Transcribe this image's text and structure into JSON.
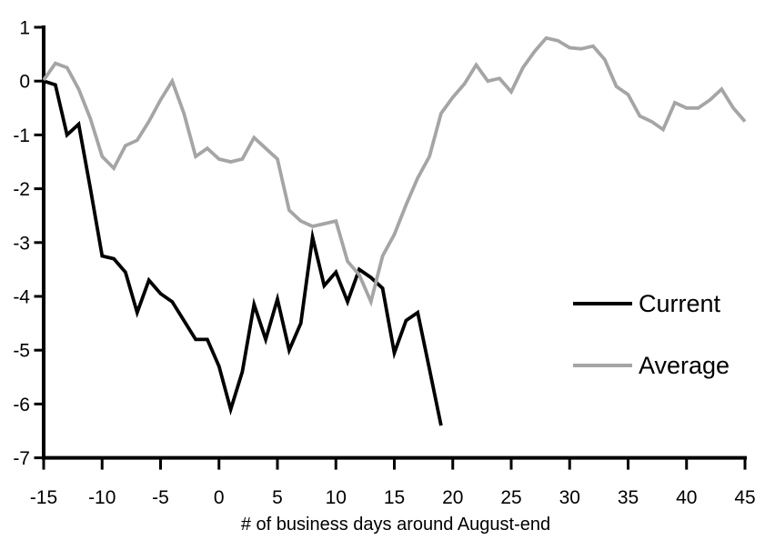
{
  "chart_data": {
    "type": "line",
    "title": "",
    "xlabel": "# of business days around August-end",
    "ylabel": "",
    "xlim": [
      -15,
      45
    ],
    "ylim": [
      -7,
      1
    ],
    "x_ticks": [
      -15,
      -10,
      -5,
      0,
      5,
      10,
      15,
      20,
      25,
      30,
      35,
      40,
      45
    ],
    "y_ticks": [
      1,
      0,
      -1,
      -2,
      -3,
      -4,
      -5,
      -6,
      -7
    ],
    "grid": false,
    "legend_position": "middle-right",
    "axis_color": "#000000",
    "background_color": "#ffffff",
    "series": [
      {
        "name": "Current",
        "color": "#000000",
        "x": [
          -15,
          -14,
          -13,
          -12,
          -11,
          -10,
          -9,
          -8,
          -7,
          -6,
          -5,
          -4,
          -3,
          -2,
          -1,
          0,
          1,
          2,
          3,
          4,
          5,
          6,
          7,
          8,
          9,
          10,
          11,
          12,
          13,
          14,
          15,
          16,
          17,
          18,
          19
        ],
        "values": [
          0,
          -0.07,
          -1.0,
          -0.8,
          -2.0,
          -3.25,
          -3.3,
          -3.55,
          -4.3,
          -3.7,
          -3.95,
          -4.1,
          -4.45,
          -4.8,
          -4.8,
          -5.3,
          -6.1,
          -5.4,
          -4.15,
          -4.8,
          -4.05,
          -5.0,
          -4.5,
          -2.9,
          -3.8,
          -3.55,
          -4.1,
          -3.5,
          -3.65,
          -3.85,
          -5.05,
          -4.45,
          -4.3,
          -5.35,
          -6.4
        ]
      },
      {
        "name": "Average",
        "color": "#A5A5A5",
        "x": [
          -15,
          -14,
          -13,
          -12,
          -11,
          -10,
          -9,
          -8,
          -7,
          -6,
          -5,
          -4,
          -3,
          -2,
          -1,
          0,
          1,
          2,
          3,
          4,
          5,
          6,
          7,
          8,
          9,
          10,
          11,
          12,
          13,
          14,
          15,
          16,
          17,
          18,
          19,
          20,
          21,
          22,
          23,
          24,
          25,
          26,
          27,
          28,
          29,
          30,
          31,
          32,
          33,
          34,
          35,
          36,
          37,
          38,
          39,
          40,
          41,
          42,
          43,
          44,
          45
        ],
        "values": [
          0.02,
          0.33,
          0.25,
          -0.15,
          -0.7,
          -1.4,
          -1.62,
          -1.2,
          -1.1,
          -0.75,
          -0.35,
          0.0,
          -0.6,
          -1.4,
          -1.25,
          -1.45,
          -1.5,
          -1.45,
          -1.05,
          -1.25,
          -1.45,
          -2.4,
          -2.6,
          -2.7,
          -2.65,
          -2.6,
          -3.35,
          -3.6,
          -4.1,
          -3.25,
          -2.85,
          -2.3,
          -1.8,
          -1.4,
          -0.6,
          -0.3,
          -0.05,
          0.3,
          0.0,
          0.05,
          -0.2,
          0.25,
          0.55,
          0.8,
          0.75,
          0.62,
          0.6,
          0.65,
          0.4,
          -0.1,
          -0.25,
          -0.65,
          -0.75,
          -0.9,
          -0.4,
          -0.5,
          -0.5,
          -0.35,
          -0.15,
          -0.5,
          -0.75
        ]
      }
    ]
  },
  "legend": {
    "items": [
      {
        "label": "Current",
        "color": "#000000"
      },
      {
        "label": "Average",
        "color": "#A5A5A5"
      }
    ]
  }
}
